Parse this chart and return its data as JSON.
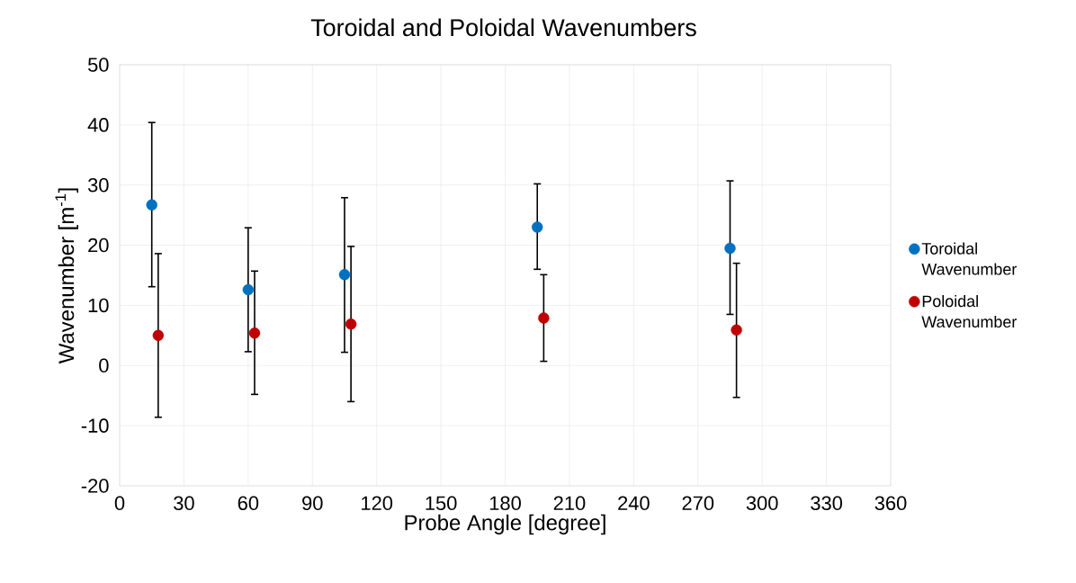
{
  "chart_data": {
    "type": "scatter",
    "title": "Toroidal and Poloidal Wavenumbers",
    "xlabel": "Probe Angle [degree]",
    "ylabel": "Wavenumber [m$^{-1}$]",
    "series": [
      {
        "name": "Toroidal Wavenumber",
        "color": "#0070c0",
        "x": [
          15,
          60,
          105,
          195,
          285
        ],
        "values": [
          26.7,
          12.6,
          15.1,
          23.0,
          19.5
        ],
        "errors": [
          [
            13.1,
            40.4
          ],
          [
            2.3,
            22.9
          ],
          [
            2.2,
            27.9
          ],
          [
            16.0,
            30.2
          ],
          [
            8.5,
            30.7
          ]
        ]
      },
      {
        "name": "Poloidal Wavenumber",
        "color": "#c00000",
        "x": [
          18,
          63,
          108,
          198,
          288
        ],
        "values": [
          5.0,
          5.4,
          6.9,
          7.9,
          5.9
        ],
        "errors": [
          [
            -8.6,
            18.6
          ],
          [
            -4.8,
            15.7
          ],
          [
            -6.0,
            19.8
          ],
          [
            0.7,
            15.1
          ],
          [
            -5.3,
            17.0
          ]
        ]
      }
    ],
    "xlim": [
      0,
      360
    ],
    "xticks": [
      0,
      30,
      60,
      90,
      120,
      150,
      180,
      210,
      240,
      270,
      300,
      330,
      360
    ],
    "ylim": [
      -20,
      50
    ],
    "yticks": [
      -20,
      -10,
      0,
      10,
      20,
      30,
      40,
      50
    ],
    "grid": true,
    "legend": "right",
    "marker": "circle"
  }
}
